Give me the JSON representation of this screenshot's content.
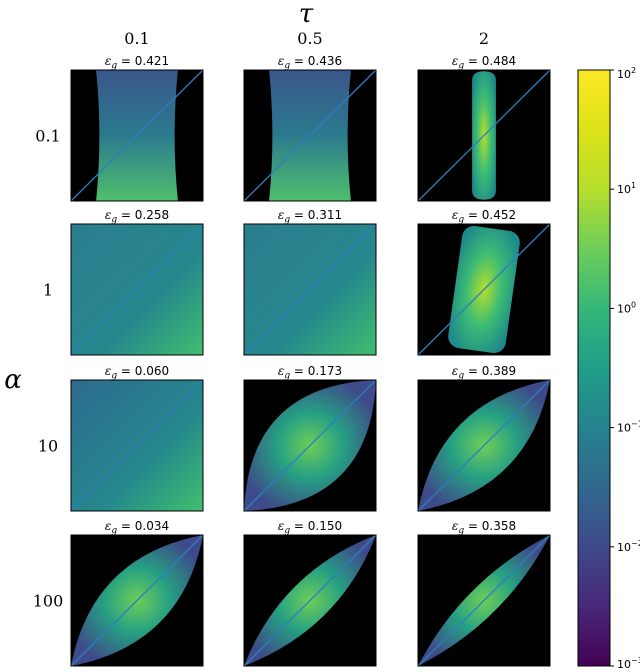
{
  "chart_data": {
    "type": "heatmap",
    "col_header": "τ",
    "row_header": "α",
    "col_labels": [
      "0.1",
      "0.5",
      "2"
    ],
    "row_labels": [
      "0.1",
      "1",
      "10",
      "100"
    ],
    "panel_title_prefix": "ε",
    "panel_title_subscript": "g",
    "panel_title_sep": " = ",
    "panels": [
      [
        {
          "eps_g": "0.421",
          "shape": "vband"
        },
        {
          "eps_g": "0.436",
          "shape": "vband"
        },
        {
          "eps_g": "0.484",
          "shape": "capsule_thin"
        }
      ],
      [
        {
          "eps_g": "0.258",
          "shape": "full"
        },
        {
          "eps_g": "0.311",
          "shape": "full"
        },
        {
          "eps_g": "0.452",
          "shape": "capsule_wide"
        }
      ],
      [
        {
          "eps_g": "0.060",
          "shape": "full"
        },
        {
          "eps_g": "0.173",
          "shape": "lens_wide"
        },
        {
          "eps_g": "0.389",
          "shape": "lens_mid"
        }
      ],
      [
        {
          "eps_g": "0.034",
          "shape": "lens_mid"
        },
        {
          "eps_g": "0.150",
          "shape": "lens_thin"
        },
        {
          "eps_g": "0.358",
          "shape": "lens_thinner"
        }
      ]
    ],
    "diagonal_color": "#2e7ebf",
    "background_color": "#000000",
    "colormap": "viridis",
    "colorbar": {
      "scale": "log",
      "range": [
        0.001,
        100
      ],
      "ticks": [
        {
          "base": "10",
          "exp": "2",
          "value": 100
        },
        {
          "base": "10",
          "exp": "1",
          "value": 10
        },
        {
          "base": "10",
          "exp": "0",
          "value": 1
        },
        {
          "base": "10",
          "exp": "−1",
          "value": 0.1
        },
        {
          "base": "10",
          "exp": "−2",
          "value": 0.01
        },
        {
          "base": "10",
          "exp": "−3",
          "value": 0.001
        }
      ]
    }
  }
}
